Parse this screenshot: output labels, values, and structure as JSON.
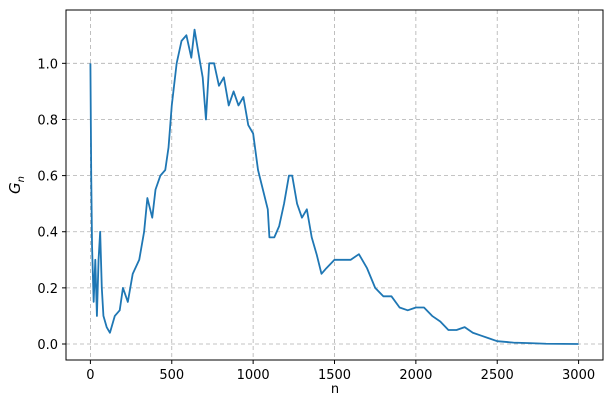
{
  "chart_data": {
    "type": "line",
    "xlabel": "n",
    "ylabel": "G",
    "ylabel_sub": "n",
    "x": [
      0,
      5,
      10,
      20,
      30,
      40,
      50,
      60,
      70,
      80,
      100,
      120,
      150,
      180,
      200,
      230,
      260,
      300,
      330,
      350,
      380,
      400,
      430,
      460,
      480,
      500,
      530,
      560,
      590,
      620,
      640,
      660,
      690,
      710,
      730,
      760,
      790,
      820,
      850,
      880,
      910,
      940,
      970,
      1000,
      1030,
      1060,
      1090,
      1100,
      1130,
      1160,
      1190,
      1220,
      1240,
      1270,
      1300,
      1330,
      1360,
      1390,
      1420,
      1450,
      1500,
      1550,
      1600,
      1650,
      1700,
      1750,
      1800,
      1850,
      1900,
      1950,
      2000,
      2050,
      2100,
      2150,
      2200,
      2250,
      2300,
      2350,
      2400,
      2450,
      2500,
      2600,
      2700,
      2800,
      3000
    ],
    "series": [
      {
        "name": "G_n",
        "color": "#1f77b4",
        "values": [
          1.0,
          0.6,
          0.35,
          0.15,
          0.3,
          0.1,
          0.3,
          0.4,
          0.2,
          0.1,
          0.06,
          0.04,
          0.1,
          0.12,
          0.2,
          0.15,
          0.25,
          0.3,
          0.4,
          0.52,
          0.45,
          0.55,
          0.6,
          0.62,
          0.7,
          0.85,
          1.0,
          1.08,
          1.1,
          1.02,
          1.12,
          1.05,
          0.95,
          0.8,
          1.0,
          1.0,
          0.92,
          0.95,
          0.85,
          0.9,
          0.85,
          0.88,
          0.78,
          0.75,
          0.62,
          0.55,
          0.48,
          0.38,
          0.38,
          0.42,
          0.5,
          0.6,
          0.6,
          0.5,
          0.45,
          0.48,
          0.38,
          0.32,
          0.25,
          0.27,
          0.3,
          0.3,
          0.3,
          0.32,
          0.27,
          0.2,
          0.17,
          0.17,
          0.13,
          0.12,
          0.13,
          0.13,
          0.1,
          0.08,
          0.05,
          0.05,
          0.06,
          0.04,
          0.03,
          0.02,
          0.01,
          0.005,
          0.003,
          0.001,
          0
        ]
      }
    ],
    "xlim": [
      -150,
      3150
    ],
    "ylim": [
      -0.057,
      1.19
    ],
    "xticks": [
      0,
      500,
      1000,
      1500,
      2000,
      2500,
      3000
    ],
    "yticks": [
      {
        "value": 0,
        "label": "0.0"
      },
      0.2,
      0.4,
      0.6,
      0.8,
      {
        "value": 1,
        "label": "1.0"
      }
    ],
    "grid": true
  }
}
